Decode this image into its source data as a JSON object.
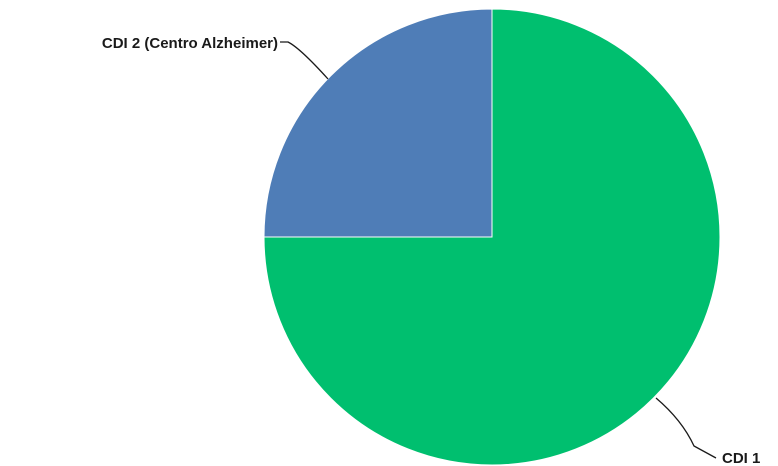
{
  "chart_data": {
    "type": "pie",
    "title": "",
    "slices": [
      {
        "label": "CDI 1",
        "value": 75,
        "color": "#00bf6f"
      },
      {
        "label": "CDI 2 (Centro Alzheimer)",
        "value": 25,
        "color": "#4f7db7"
      }
    ],
    "legend": "none"
  }
}
